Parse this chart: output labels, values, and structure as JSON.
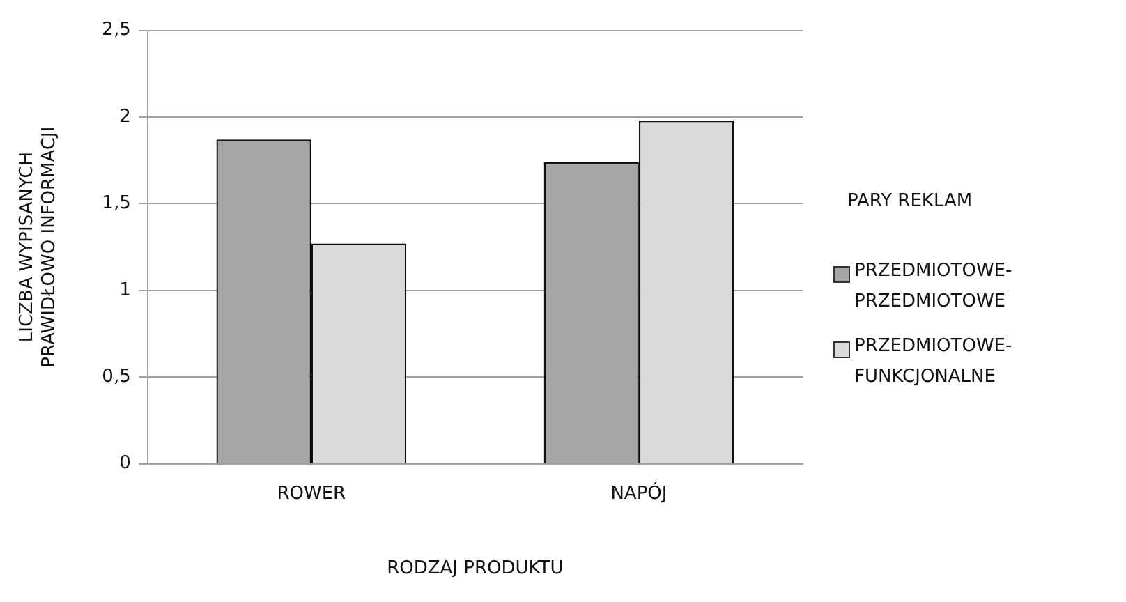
{
  "chart_data": {
    "type": "bar",
    "xlabel": "RODZAJ PRODUKTU",
    "ylabel": "LICZBA WYPISANYCH PRAWIDŁOWO INFORMACJI",
    "legend_title": "PARY REKLAM",
    "categories": [
      "ROWER",
      "NAPÓJ"
    ],
    "series": [
      {
        "name": "PRZEDMIOTOWE-PRZEDMIOTOWE",
        "color": "#a6a6a6",
        "values": [
          1.87,
          1.74
        ]
      },
      {
        "name": "PRZEDMIOTOWE-FUNKCJONALNE",
        "color": "#d9d9d9",
        "values": [
          1.27,
          1.98
        ]
      }
    ],
    "ylim": [
      0,
      2.5
    ],
    "yticks": [
      {
        "value": 0,
        "label": "0"
      },
      {
        "value": 0.5,
        "label": "0,5"
      },
      {
        "value": 1,
        "label": "1"
      },
      {
        "value": 1.5,
        "label": "1,5"
      },
      {
        "value": 2,
        "label": "2"
      },
      {
        "value": 2.5,
        "label": "2,5"
      }
    ],
    "grid": "y",
    "legend": "right"
  }
}
